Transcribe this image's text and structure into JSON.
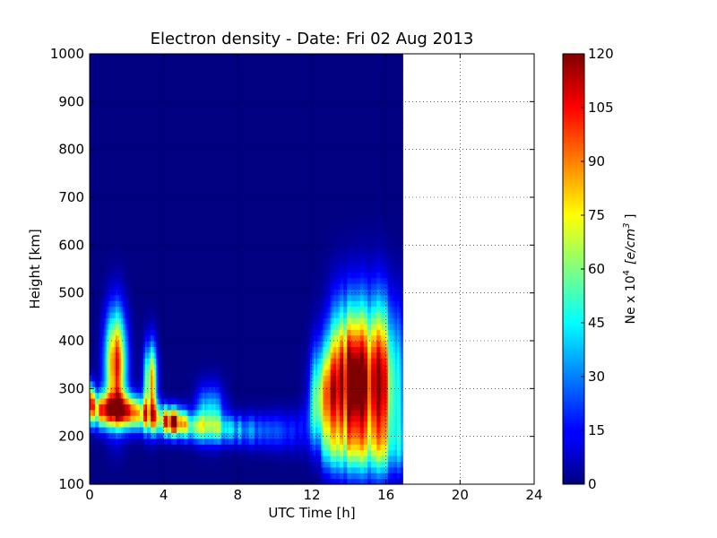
{
  "chart_data": {
    "type": "heatmap",
    "title": "Electron density - Date: Fri 02 Aug 2013",
    "xlabel": "UTC Time [h]",
    "ylabel": "Height [km]",
    "xlim": [
      0,
      24
    ],
    "ylim": [
      100,
      1000
    ],
    "x_ticks": [
      "0",
      "4",
      "8",
      "12",
      "16",
      "20",
      "24"
    ],
    "y_ticks": [
      "100",
      "200",
      "300",
      "400",
      "500",
      "600",
      "700",
      "800",
      "900",
      "1000"
    ],
    "grid": true,
    "colormap": "jet",
    "data_end_hour": 16.9,
    "colorbar": {
      "label_prefix": "Ne x 10",
      "label_exp": "4",
      "label_units_a": "[e/cm",
      "label_units_exp": "3",
      "label_units_b": " ]",
      "range": [
        0,
        120
      ],
      "ticks": [
        "0",
        "15",
        "30",
        "45",
        "60",
        "75",
        "90",
        "105",
        "120"
      ]
    },
    "features": [
      {
        "name": "layer",
        "points": [
          [
            0,
            270,
            0.95,
            30
          ],
          [
            0.5,
            255,
            0.9,
            25
          ],
          [
            1.5,
            255,
            0.9,
            25
          ],
          [
            2.5,
            250,
            0.85,
            25
          ],
          [
            3.5,
            240,
            0.75,
            25
          ],
          [
            4.5,
            225,
            0.65,
            20
          ],
          [
            5.5,
            220,
            0.55,
            20
          ],
          [
            7,
            215,
            0.45,
            20
          ],
          [
            9,
            212,
            0.3,
            25
          ],
          [
            11,
            210,
            0.2,
            30
          ],
          [
            12,
            220,
            0.15,
            40
          ],
          [
            13,
            230,
            0.1,
            40
          ],
          [
            17,
            230,
            0.1,
            40
          ]
        ]
      },
      {
        "name": "blob",
        "points": [
          [
            1.4,
            360,
            1.0,
            0.4,
            80
          ]
        ]
      },
      {
        "name": "blob",
        "points": [
          [
            3.3,
            320,
            0.85,
            0.25,
            55
          ]
        ]
      },
      {
        "name": "blob",
        "points": [
          [
            4.6,
            235,
            0.65,
            0.4,
            20
          ]
        ]
      },
      {
        "name": "blob",
        "points": [
          [
            6.5,
            250,
            0.55,
            0.5,
            40
          ]
        ]
      },
      {
        "name": "blob",
        "points": [
          [
            12.6,
            290,
            0.7,
            0.45,
            70
          ]
        ]
      },
      {
        "name": "blob",
        "points": [
          [
            13.8,
            330,
            1.05,
            0.7,
            110
          ]
        ]
      },
      {
        "name": "blob",
        "points": [
          [
            15.5,
            330,
            1.1,
            0.9,
            120
          ]
        ]
      },
      {
        "name": "bottom",
        "points": [
          [
            12.5,
            17,
            170,
            0.25,
            35
          ]
        ]
      }
    ]
  }
}
